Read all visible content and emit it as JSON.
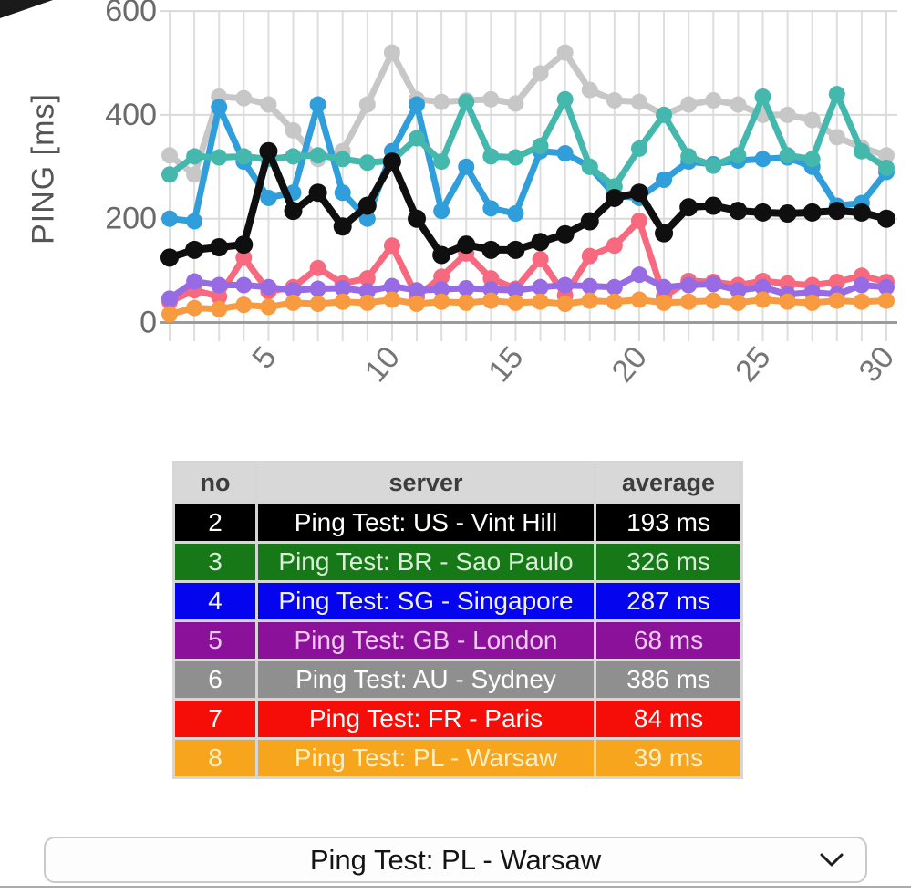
{
  "chart_data": {
    "type": "line",
    "title": "",
    "ylabel": "PING [ms]",
    "xlabel": "",
    "x": [
      1,
      2,
      3,
      4,
      5,
      6,
      7,
      8,
      9,
      10,
      11,
      12,
      13,
      14,
      15,
      16,
      17,
      18,
      19,
      20,
      21,
      22,
      23,
      24,
      25,
      26,
      27,
      28,
      29,
      30
    ],
    "xticks": [
      5,
      10,
      15,
      20,
      25,
      30
    ],
    "yticks": [
      0,
      200,
      400,
      600
    ],
    "ylim": [
      0,
      620
    ],
    "grid": true,
    "legend_position": "none",
    "series": [
      {
        "name": "Ping Test: AU - Sydney",
        "color": "#C7C7C7",
        "values": [
          322,
          285,
          435,
          432,
          420,
          370,
          315,
          330,
          420,
          520,
          430,
          425,
          428,
          430,
          422,
          480,
          520,
          448,
          428,
          425,
          400,
          420,
          428,
          420,
          400,
          400,
          390,
          357,
          337,
          322
        ]
      },
      {
        "name": "Ping Test: SG - Singapore",
        "color": "#2F9EDA",
        "values": [
          200,
          195,
          415,
          310,
          240,
          250,
          420,
          250,
          200,
          330,
          420,
          215,
          300,
          220,
          210,
          330,
          326,
          300,
          245,
          240,
          275,
          310,
          305,
          312,
          315,
          318,
          300,
          225,
          230,
          290
        ]
      },
      {
        "name": "Ping Test: BR - Sao Paulo",
        "color": "#45B8AE",
        "values": [
          285,
          320,
          318,
          320,
          315,
          320,
          322,
          315,
          308,
          312,
          355,
          310,
          425,
          320,
          318,
          340,
          430,
          300,
          262,
          335,
          400,
          320,
          302,
          322,
          435,
          322,
          315,
          440,
          330,
          298
        ]
      },
      {
        "name": "Ping Test: FR - Paris",
        "color": "#F7697F",
        "values": [
          40,
          62,
          50,
          125,
          60,
          68,
          105,
          75,
          85,
          148,
          50,
          88,
          133,
          85,
          65,
          122,
          52,
          128,
          148,
          196,
          50,
          80,
          78,
          72,
          80,
          75,
          72,
          78,
          90,
          78
        ]
      },
      {
        "name": "Ping Test: US - Vint Hill",
        "color": "#0F0F0F",
        "values": [
          125,
          140,
          145,
          150,
          330,
          215,
          250,
          185,
          225,
          310,
          200,
          130,
          150,
          140,
          140,
          155,
          170,
          195,
          240,
          250,
          172,
          222,
          225,
          215,
          212,
          210,
          212,
          215,
          212,
          200
        ]
      },
      {
        "name": "Ping Test: GB - London",
        "color": "#976BE3",
        "values": [
          46,
          79,
          72,
          72,
          68,
          62,
          65,
          66,
          60,
          70,
          62,
          64,
          66,
          64,
          62,
          68,
          72,
          70,
          68,
          92,
          68,
          72,
          74,
          62,
          68,
          54,
          58,
          54,
          72,
          68
        ]
      },
      {
        "name": "Ping Test: PL - Warsaw",
        "color": "#F89B40",
        "values": [
          16,
          28,
          26,
          34,
          30,
          38,
          36,
          40,
          38,
          44,
          36,
          40,
          38,
          42,
          38,
          40,
          36,
          42,
          40,
          44,
          38,
          40,
          42,
          38,
          44,
          40,
          38,
          42,
          40,
          42
        ]
      }
    ]
  },
  "table": {
    "columns": [
      "no",
      "server",
      "average"
    ],
    "rows": [
      {
        "no": "2",
        "server": "Ping Test: US - Vint Hill",
        "average": "193 ms",
        "bg": "#000000",
        "fg": "#FFFFFF"
      },
      {
        "no": "3",
        "server": "Ping Test: BR - Sao Paulo",
        "average": "326 ms",
        "bg": "#177817",
        "fg": "#D9EED9"
      },
      {
        "no": "4",
        "server": "Ping Test: SG - Singapore",
        "average": "287 ms",
        "bg": "#0404EE",
        "fg": "#F2F2FF"
      },
      {
        "no": "5",
        "server": "Ping Test: GB - London",
        "average": "68 ms",
        "bg": "#8B119B",
        "fg": "#F0CBF0"
      },
      {
        "no": "6",
        "server": "Ping Test: AU - Sydney",
        "average": "386 ms",
        "bg": "#8F8F8F",
        "fg": "#FFFFFF"
      },
      {
        "no": "7",
        "server": "Ping Test: FR - Paris",
        "average": "84 ms",
        "bg": "#F60D08",
        "fg": "#FFFFFF"
      },
      {
        "no": "8",
        "server": "Ping Test: PL - Warsaw",
        "average": "39 ms",
        "bg": "#F6A51C",
        "fg": "#FFEFC6"
      }
    ]
  },
  "dropdown": {
    "value": "Ping Test: PL - Warsaw"
  }
}
